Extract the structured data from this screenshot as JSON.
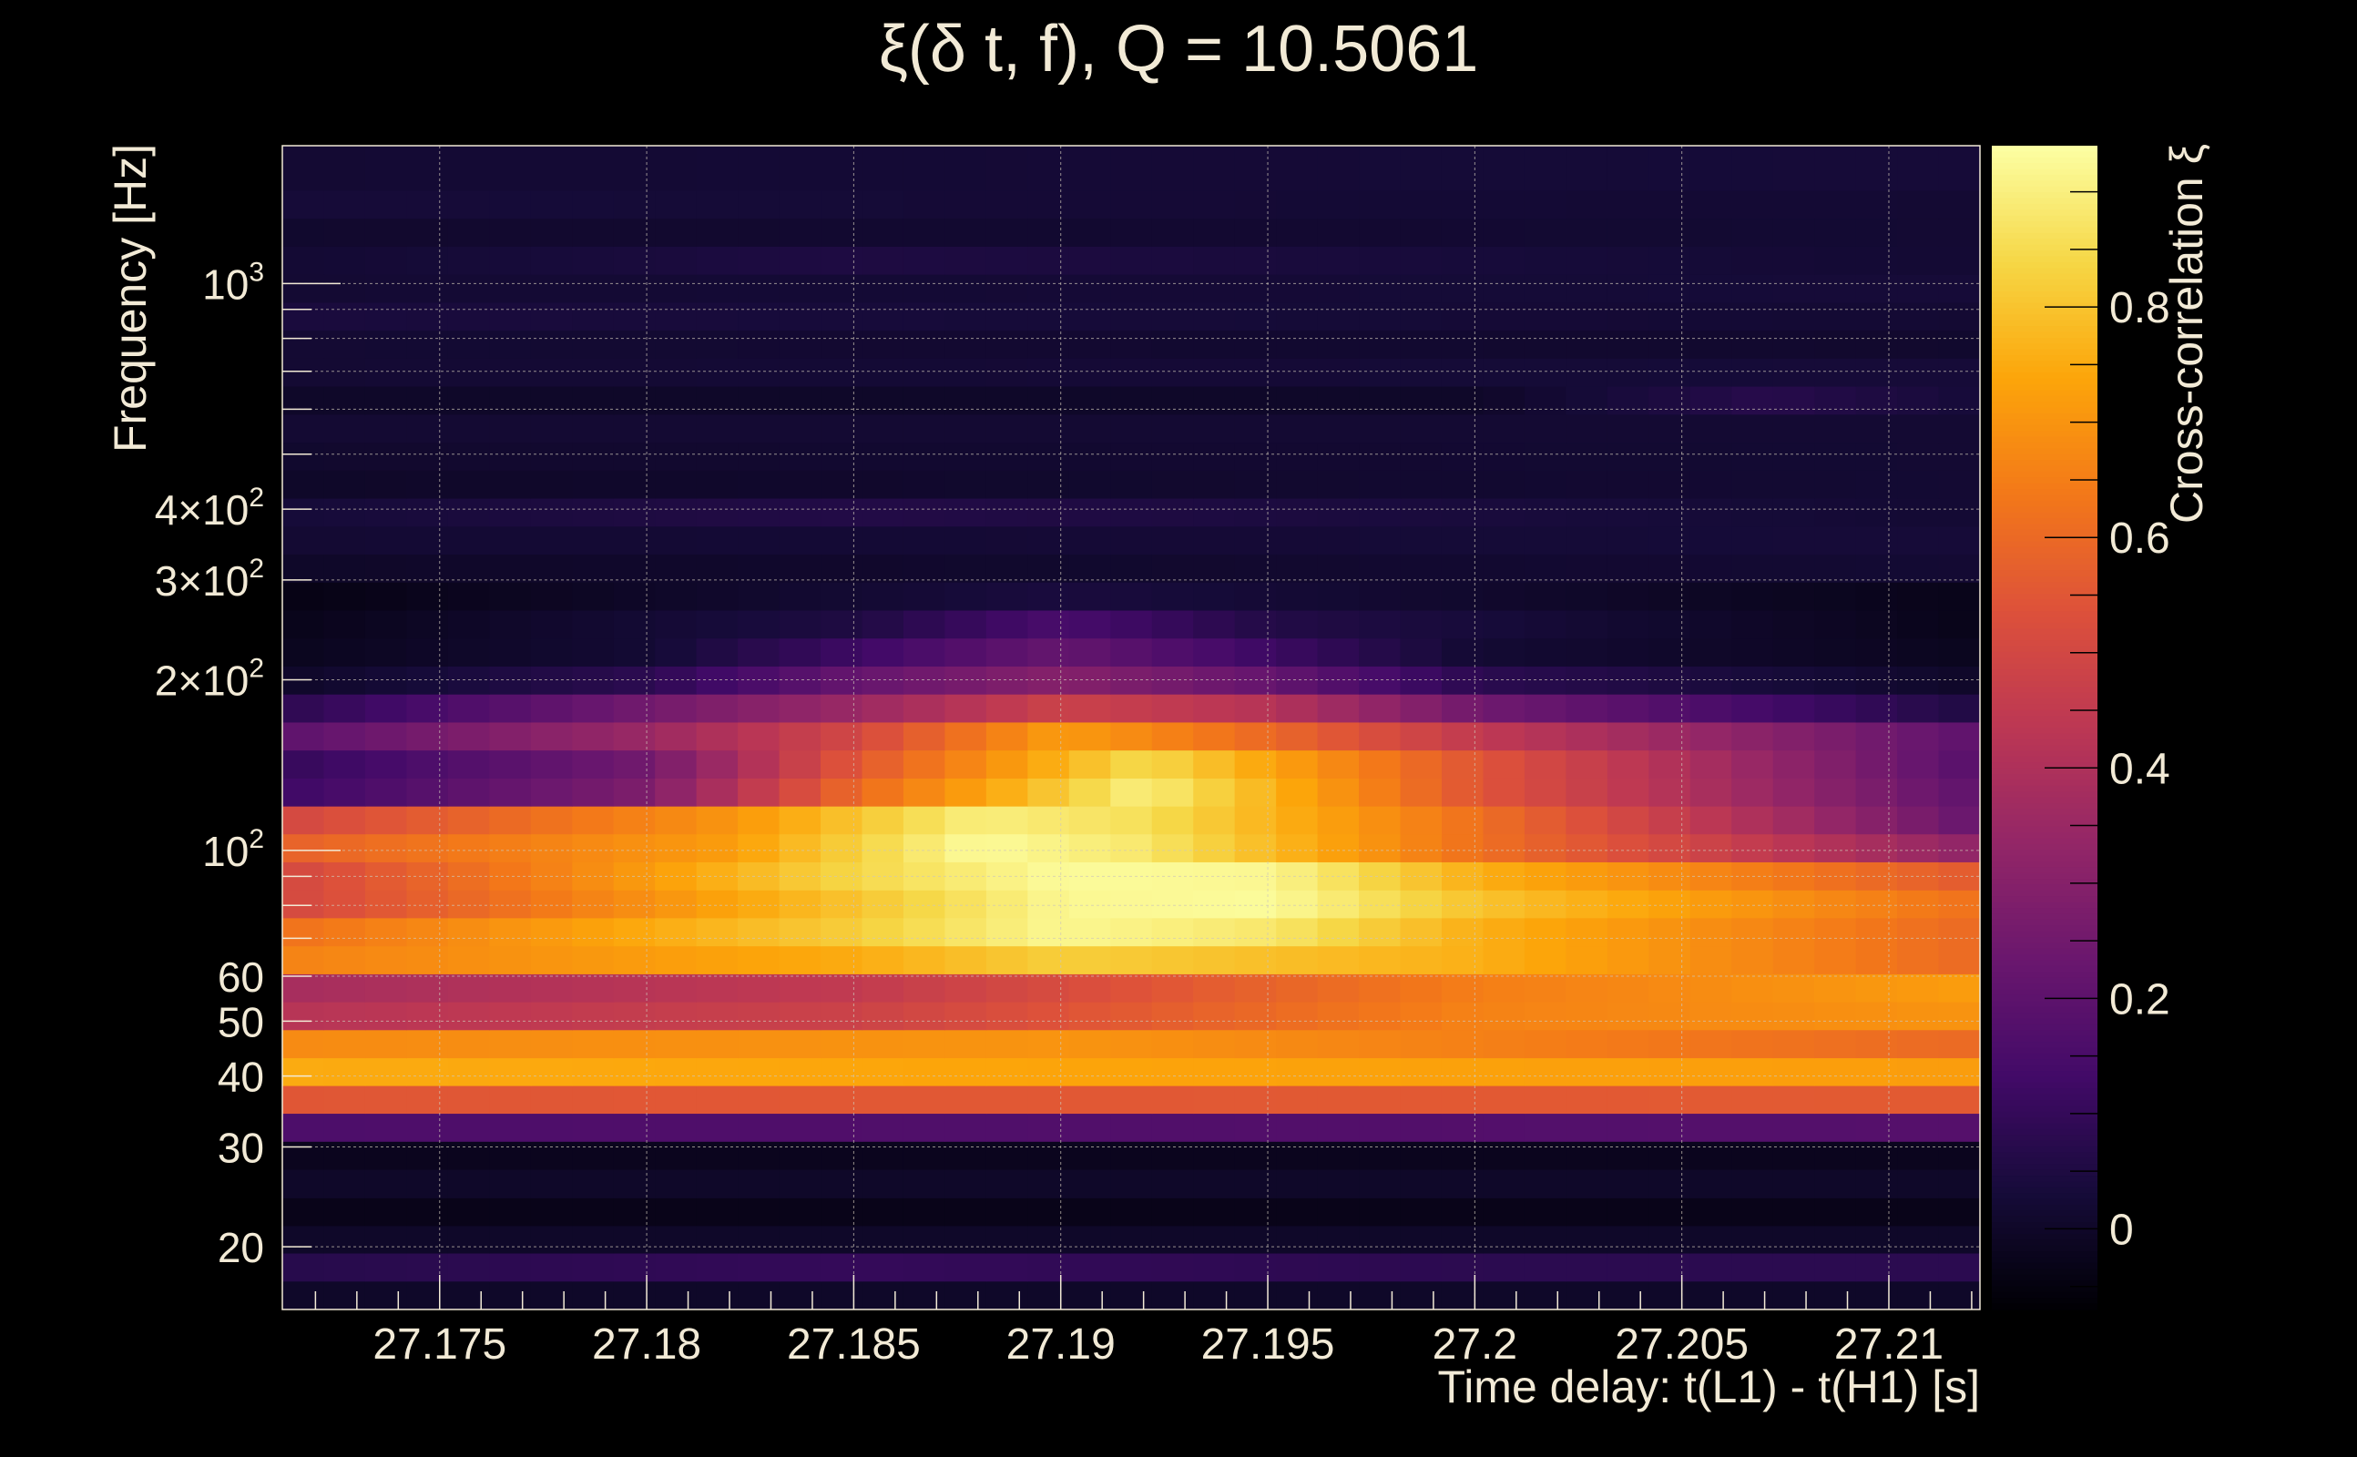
{
  "theme": {
    "background": "#000000",
    "text_color": "#f2ead6",
    "grid_color": "#cfc8b8"
  },
  "chart_data": {
    "type": "heatmap",
    "title": "ξ(δ t, f), Q = 10.5061",
    "xlabel": "Time delay: t(L1) - t(H1) [s]",
    "ylabel": "Frequency [Hz]",
    "zlabel": "Cross-correlation ξ",
    "colormap": "inferno",
    "xlim": [
      27.1712,
      27.2122
    ],
    "ylim": [
      15.5,
      1750
    ],
    "y_scale": "log",
    "zlim": [
      -0.07,
      0.94
    ],
    "x_ticks": [
      {
        "value": 27.175,
        "label": "27.175"
      },
      {
        "value": 27.18,
        "label": "27.18"
      },
      {
        "value": 27.185,
        "label": "27.185"
      },
      {
        "value": 27.19,
        "label": "27.19"
      },
      {
        "value": 27.195,
        "label": "27.195"
      },
      {
        "value": 27.2,
        "label": "27.2"
      },
      {
        "value": 27.205,
        "label": "27.205"
      },
      {
        "value": 27.21,
        "label": "27.21"
      }
    ],
    "y_ticks": [
      {
        "value": 20,
        "base": "20",
        "exp": ""
      },
      {
        "value": 30,
        "base": "30",
        "exp": ""
      },
      {
        "value": 40,
        "base": "40",
        "exp": ""
      },
      {
        "value": 50,
        "base": "50",
        "exp": ""
      },
      {
        "value": 60,
        "base": "60",
        "exp": ""
      },
      {
        "value": 100,
        "base": "10",
        "exp": "2"
      },
      {
        "value": 200,
        "base": "2×10",
        "exp": "2"
      },
      {
        "value": 300,
        "base": "3×10",
        "exp": "2"
      },
      {
        "value": 400,
        "base": "4×10",
        "exp": "2"
      },
      {
        "value": 1000,
        "base": "10",
        "exp": "3"
      }
    ],
    "y_gridlines": [
      20,
      30,
      40,
      50,
      60,
      70,
      80,
      90,
      100,
      200,
      300,
      400,
      500,
      600,
      700,
      800,
      900,
      1000,
      2000
    ],
    "colorbar_ticks": [
      {
        "value": 0,
        "label": "0"
      },
      {
        "value": 0.2,
        "label": "0.2"
      },
      {
        "value": 0.4,
        "label": "0.4"
      },
      {
        "value": 0.6,
        "label": "0.6"
      },
      {
        "value": 0.8,
        "label": "0.8"
      }
    ],
    "rows": [
      {
        "f_low": 15.5,
        "f_high": 17.4,
        "profile": [
          [
            27.1712,
            0.0
          ],
          [
            27.2122,
            0.0
          ]
        ]
      },
      {
        "f_low": 17.4,
        "f_high": 19.5,
        "profile": [
          [
            27.1712,
            0.07
          ],
          [
            27.185,
            0.1
          ],
          [
            27.2,
            0.08
          ],
          [
            27.2122,
            0.08
          ]
        ]
      },
      {
        "f_low": 19.5,
        "f_high": 21.8,
        "profile": [
          [
            27.1712,
            0.0
          ],
          [
            27.2122,
            0.0
          ]
        ]
      },
      {
        "f_low": 21.8,
        "f_high": 24.4,
        "profile": [
          [
            27.1712,
            -0.03
          ],
          [
            27.2122,
            -0.03
          ]
        ]
      },
      {
        "f_low": 24.4,
        "f_high": 27.4,
        "profile": [
          [
            27.1712,
            0.0
          ],
          [
            27.2122,
            0.0
          ]
        ]
      },
      {
        "f_low": 27.4,
        "f_high": 30.7,
        "profile": [
          [
            27.1712,
            -0.02
          ],
          [
            27.2122,
            -0.02
          ]
        ]
      },
      {
        "f_low": 30.7,
        "f_high": 34.4,
        "profile": [
          [
            27.1712,
            0.16
          ],
          [
            27.2122,
            0.18
          ]
        ]
      },
      {
        "f_low": 34.4,
        "f_high": 38.5,
        "profile": [
          [
            27.1712,
            0.55
          ],
          [
            27.2122,
            0.56
          ]
        ]
      },
      {
        "f_low": 38.5,
        "f_high": 43.1,
        "profile": [
          [
            27.1712,
            0.75
          ],
          [
            27.2122,
            0.72
          ]
        ]
      },
      {
        "f_low": 43.1,
        "f_high": 48.3,
        "profile": [
          [
            27.1712,
            0.68
          ],
          [
            27.19,
            0.7
          ],
          [
            27.2122,
            0.6
          ]
        ]
      },
      {
        "f_low": 48.3,
        "f_high": 54.1,
        "profile": [
          [
            27.1712,
            0.42
          ],
          [
            27.185,
            0.48
          ],
          [
            27.2,
            0.66
          ],
          [
            27.2122,
            0.7
          ]
        ]
      },
      {
        "f_low": 54.1,
        "f_high": 60.6,
        "profile": [
          [
            27.1712,
            0.38
          ],
          [
            27.185,
            0.45
          ],
          [
            27.2,
            0.65
          ],
          [
            27.2122,
            0.72
          ]
        ]
      },
      {
        "f_low": 60.6,
        "f_high": 67.9,
        "profile": [
          [
            27.1712,
            0.66
          ],
          [
            27.185,
            0.75
          ],
          [
            27.19,
            0.82
          ],
          [
            27.2,
            0.76
          ],
          [
            27.2122,
            0.6
          ]
        ]
      },
      {
        "f_low": 67.9,
        "f_high": 76.1,
        "profile": [
          [
            27.1712,
            0.62
          ],
          [
            27.185,
            0.82
          ],
          [
            27.19,
            0.92
          ],
          [
            27.195,
            0.88
          ],
          [
            27.2,
            0.76
          ],
          [
            27.2122,
            0.6
          ]
        ]
      },
      {
        "f_low": 76.1,
        "f_high": 85.2,
        "profile": [
          [
            27.1712,
            0.5
          ],
          [
            27.185,
            0.8
          ],
          [
            27.19,
            0.92
          ],
          [
            27.195,
            0.93
          ],
          [
            27.2,
            0.8
          ],
          [
            27.2122,
            0.62
          ]
        ]
      },
      {
        "f_low": 85.2,
        "f_high": 95.5,
        "profile": [
          [
            27.1712,
            0.5
          ],
          [
            27.185,
            0.84
          ],
          [
            27.19,
            0.93
          ],
          [
            27.195,
            0.92
          ],
          [
            27.2,
            0.76
          ],
          [
            27.2122,
            0.56
          ]
        ]
      },
      {
        "f_low": 95.5,
        "f_high": 107.0,
        "profile": [
          [
            27.1712,
            0.58
          ],
          [
            27.182,
            0.72
          ],
          [
            27.188,
            0.93
          ],
          [
            27.192,
            0.88
          ],
          [
            27.2,
            0.62
          ],
          [
            27.2122,
            0.32
          ]
        ]
      },
      {
        "f_low": 107.0,
        "f_high": 119.8,
        "profile": [
          [
            27.1712,
            0.5
          ],
          [
            27.182,
            0.7
          ],
          [
            27.188,
            0.9
          ],
          [
            27.192,
            0.86
          ],
          [
            27.2,
            0.62
          ],
          [
            27.2122,
            0.22
          ]
        ]
      },
      {
        "f_low": 119.8,
        "f_high": 134.2,
        "profile": [
          [
            27.1712,
            0.12
          ],
          [
            27.18,
            0.28
          ],
          [
            27.185,
            0.6
          ],
          [
            27.192,
            0.9
          ],
          [
            27.2,
            0.55
          ],
          [
            27.2122,
            0.2
          ]
        ]
      },
      {
        "f_low": 134.2,
        "f_high": 150.4,
        "profile": [
          [
            27.1712,
            0.1
          ],
          [
            27.18,
            0.25
          ],
          [
            27.185,
            0.55
          ],
          [
            27.192,
            0.85
          ],
          [
            27.2,
            0.55
          ],
          [
            27.2122,
            0.18
          ]
        ]
      },
      {
        "f_low": 150.4,
        "f_high": 168.5,
        "profile": [
          [
            27.1712,
            0.2
          ],
          [
            27.18,
            0.35
          ],
          [
            27.185,
            0.5
          ],
          [
            27.19,
            0.72
          ],
          [
            27.195,
            0.6
          ],
          [
            27.2,
            0.45
          ],
          [
            27.2122,
            0.2
          ]
        ]
      },
      {
        "f_low": 168.5,
        "f_high": 188.8,
        "profile": [
          [
            27.1712,
            0.08
          ],
          [
            27.18,
            0.25
          ],
          [
            27.185,
            0.35
          ],
          [
            27.19,
            0.48
          ],
          [
            27.195,
            0.42
          ],
          [
            27.2,
            0.25
          ],
          [
            27.2122,
            0.05
          ]
        ]
      },
      {
        "f_low": 188.8,
        "f_high": 211.5,
        "profile": [
          [
            27.1712,
            0.0
          ],
          [
            27.18,
            0.08
          ],
          [
            27.185,
            0.22
          ],
          [
            27.19,
            0.3
          ],
          [
            27.195,
            0.22
          ],
          [
            27.2,
            0.08
          ],
          [
            27.2122,
            0.0
          ]
        ]
      },
      {
        "f_low": 211.5,
        "f_high": 237.0,
        "profile": [
          [
            27.1712,
            -0.02
          ],
          [
            27.18,
            0.02
          ],
          [
            27.185,
            0.12
          ],
          [
            27.19,
            0.22
          ],
          [
            27.195,
            0.12
          ],
          [
            27.2,
            0.02
          ],
          [
            27.2122,
            -0.02
          ]
        ]
      },
      {
        "f_low": 237.0,
        "f_high": 265.5,
        "profile": [
          [
            27.1712,
            -0.03
          ],
          [
            27.185,
            0.05
          ],
          [
            27.19,
            0.15
          ],
          [
            27.195,
            0.06
          ],
          [
            27.2122,
            -0.03
          ]
        ]
      },
      {
        "f_low": 265.5,
        "f_high": 297.5,
        "profile": [
          [
            27.1712,
            -0.04
          ],
          [
            27.19,
            0.04
          ],
          [
            27.2122,
            -0.03
          ]
        ]
      },
      {
        "f_low": 297.5,
        "f_high": 333.3,
        "profile": [
          [
            27.1712,
            0.0
          ],
          [
            27.2122,
            0.02
          ]
        ]
      },
      {
        "f_low": 333.3,
        "f_high": 373.4,
        "profile": [
          [
            27.1712,
            0.02
          ],
          [
            27.2122,
            0.03
          ]
        ]
      },
      {
        "f_low": 373.4,
        "f_high": 418.4,
        "profile": [
          [
            27.1712,
            0.03
          ],
          [
            27.185,
            0.06
          ],
          [
            27.2122,
            0.02
          ]
        ]
      },
      {
        "f_low": 418.4,
        "f_high": 468.7,
        "profile": [
          [
            27.1712,
            0.0
          ],
          [
            27.2122,
            0.02
          ]
        ]
      },
      {
        "f_low": 468.7,
        "f_high": 525.1,
        "profile": [
          [
            27.1712,
            0.01
          ],
          [
            27.2122,
            0.02
          ]
        ]
      },
      {
        "f_low": 525.1,
        "f_high": 588.3,
        "profile": [
          [
            27.1712,
            0.02
          ],
          [
            27.2122,
            0.02
          ]
        ]
      },
      {
        "f_low": 588.3,
        "f_high": 659.2,
        "profile": [
          [
            27.1712,
            0.0
          ],
          [
            27.2,
            0.0
          ],
          [
            27.207,
            0.07
          ],
          [
            27.2122,
            0.03
          ]
        ]
      },
      {
        "f_low": 659.2,
        "f_high": 738.5,
        "profile": [
          [
            27.1712,
            0.02
          ],
          [
            27.2122,
            0.03
          ]
        ]
      },
      {
        "f_low": 738.5,
        "f_high": 827.4,
        "profile": [
          [
            27.1712,
            0.02
          ],
          [
            27.2122,
            0.01
          ]
        ]
      },
      {
        "f_low": 827.4,
        "f_high": 927.0,
        "profile": [
          [
            27.1712,
            0.04
          ],
          [
            27.2122,
            0.02
          ]
        ]
      },
      {
        "f_low": 927.0,
        "f_high": 1038.6,
        "profile": [
          [
            27.1712,
            0.02
          ],
          [
            27.2122,
            0.03
          ]
        ]
      },
      {
        "f_low": 1038.6,
        "f_high": 1163.6,
        "profile": [
          [
            27.1712,
            0.02
          ],
          [
            27.185,
            0.05
          ],
          [
            27.2122,
            0.02
          ]
        ]
      },
      {
        "f_low": 1163.6,
        "f_high": 1303.7,
        "profile": [
          [
            27.1712,
            0.01
          ],
          [
            27.2122,
            0.02
          ]
        ]
      },
      {
        "f_low": 1303.7,
        "f_high": 1460.6,
        "profile": [
          [
            27.1712,
            0.03
          ],
          [
            27.2122,
            0.02
          ]
        ]
      },
      {
        "f_low": 1460.6,
        "f_high": 1750.0,
        "profile": [
          [
            27.1712,
            0.02
          ],
          [
            27.2122,
            0.03
          ]
        ]
      }
    ]
  }
}
